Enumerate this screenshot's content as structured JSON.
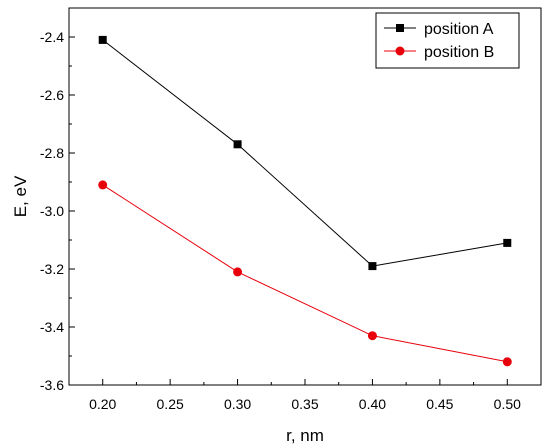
{
  "chart_data": {
    "type": "line",
    "title": "",
    "xlabel": "r, nm",
    "ylabel": "E, eV",
    "xlim": [
      0.175,
      0.525
    ],
    "ylim": [
      -3.6,
      -2.3
    ],
    "x_ticks": [
      "0.20",
      "0.25",
      "0.30",
      "0.35",
      "0.40",
      "0.45",
      "0.50"
    ],
    "y_ticks": [
      "-2.4",
      "-2.6",
      "-2.8",
      "-3.0",
      "-3.2",
      "-3.4",
      "-3.6"
    ],
    "grid": false,
    "legend_position": "top-right",
    "series": [
      {
        "name": "position A",
        "color": "#000000",
        "marker": "square",
        "x": [
          0.2,
          0.3,
          0.4,
          0.5
        ],
        "y": [
          -2.41,
          -2.77,
          -3.19,
          -3.11
        ]
      },
      {
        "name": "position B",
        "color": "#e8000b",
        "marker": "circle",
        "x": [
          0.2,
          0.3,
          0.4,
          0.5
        ],
        "y": [
          -2.91,
          -3.21,
          -3.43,
          -3.52
        ]
      }
    ]
  }
}
